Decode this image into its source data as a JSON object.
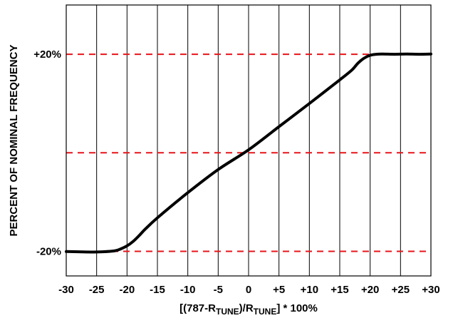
{
  "chart_data": {
    "type": "line",
    "title": "",
    "xlabel": {
      "prefix": "[(787-R",
      "sub1": "TUNE",
      "middle": ")/R",
      "sub2": "TUNE",
      "suffix": "] * 100%"
    },
    "ylabel": "PERCENT OF NOMINAL FREQUENCY",
    "xlim": [
      -30,
      30
    ],
    "ylim": [
      -25,
      30
    ],
    "x_ticks": [
      -30,
      -25,
      -20,
      -15,
      -10,
      -5,
      0,
      5,
      10,
      15,
      20,
      25,
      30
    ],
    "x_tick_labels": [
      "-30",
      "-25",
      "-20",
      "-15",
      "-10",
      "-5",
      "0",
      "+5",
      "+10",
      "+15",
      "+20",
      "+25",
      "+30"
    ],
    "y_reference_lines": [
      20,
      0,
      -20
    ],
    "y_tick_labels": [
      {
        "value": 20,
        "label": "+20%"
      },
      {
        "value": -20,
        "label": "-20%"
      }
    ],
    "grid": {
      "vertical": true,
      "horizontal_dashed": true
    },
    "colors": {
      "curve": "#000000",
      "reference_lines": "#e8141a",
      "grid": "#000000"
    },
    "series": [
      {
        "x": [
          -30,
          -28,
          -26,
          -24,
          -22,
          -21,
          -20,
          -19,
          -18,
          -17,
          -15,
          -10,
          -5,
          0,
          5,
          10,
          15,
          17,
          18,
          19,
          20,
          21,
          22,
          24,
          26,
          28,
          30
        ],
        "y": [
          -20.05,
          -20.1,
          -20.15,
          -20.1,
          -19.9,
          -19.5,
          -18.9,
          -18.0,
          -16.8,
          -15.5,
          -13.2,
          -8.1,
          -3.4,
          0.6,
          5.3,
          10.0,
          14.8,
          16.8,
          18.2,
          19.2,
          19.8,
          20.0,
          20.05,
          20.0,
          20.05,
          20.0,
          20.05
        ]
      }
    ]
  }
}
